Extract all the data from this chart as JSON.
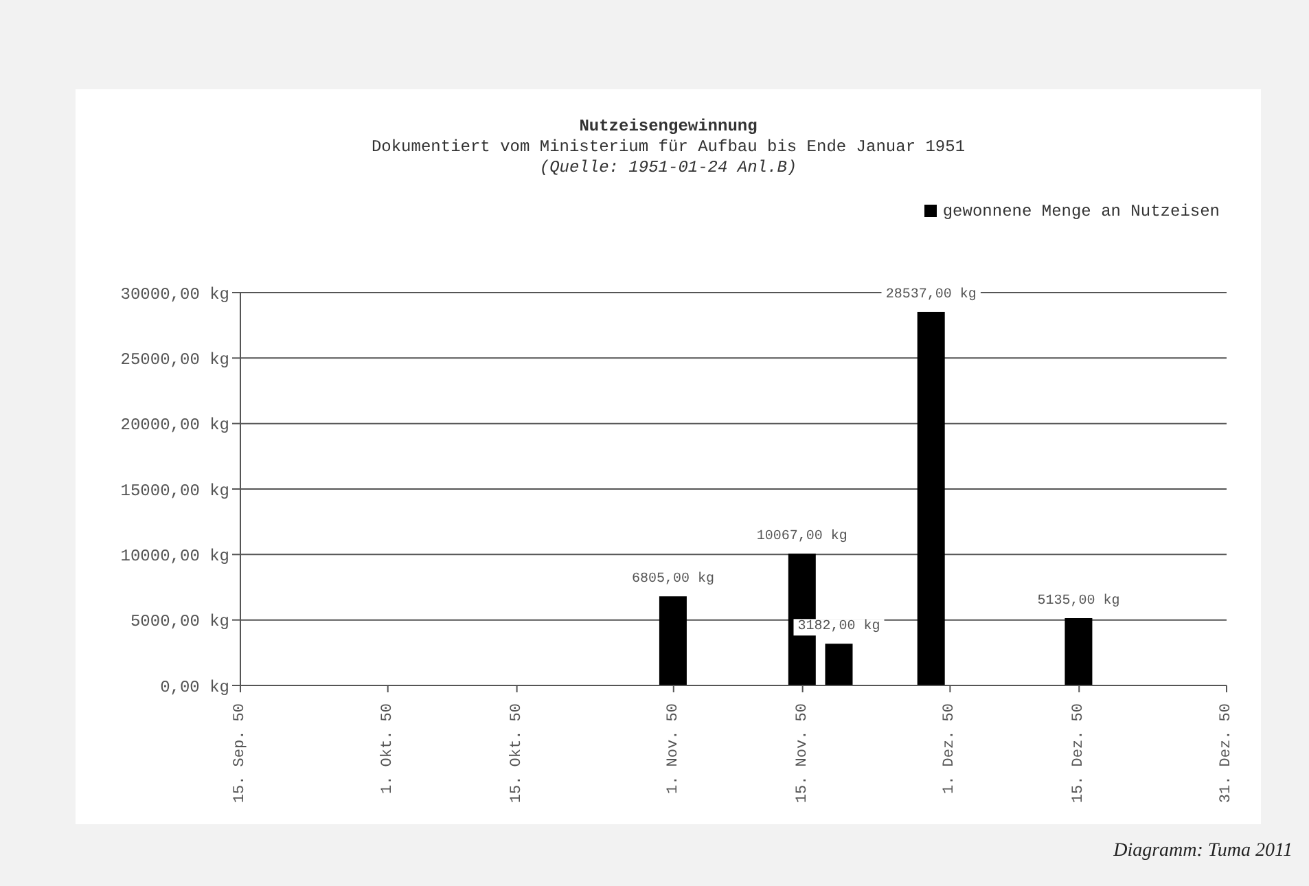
{
  "chart_data": {
    "type": "bar",
    "title": "Nutzeisengewinnung",
    "subtitle": "Dokumentiert vom Ministerium für Aufbau bis Ende Januar 1951\n(Quelle: 1951-01-24 Anl.B)",
    "x": [
      "1950-11-01",
      "1950-11-15",
      "1950-11-19",
      "1950-11-29",
      "1950-12-15"
    ],
    "series": [
      {
        "name": "gewonnene Menge an Nutzeisen",
        "color": "#000000",
        "values": [
          6805,
          10067,
          3182,
          28537,
          5135
        ],
        "value_labels": [
          "6805,00 kg",
          "10067,00 kg",
          "3182,00 kg",
          "28537,00 kg",
          "5135,00 kg"
        ]
      }
    ],
    "xlim": [
      "1950-09-15",
      "1950-12-31"
    ],
    "xticks": [
      {
        "value": "1950-09-15",
        "label": "15. Sep. 50"
      },
      {
        "value": "1950-10-01",
        "label": "1. Okt. 50"
      },
      {
        "value": "1950-10-15",
        "label": "15. Okt. 50"
      },
      {
        "value": "1950-11-01",
        "label": "1. Nov. 50"
      },
      {
        "value": "1950-11-15",
        "label": "15. Nov. 50"
      },
      {
        "value": "1950-12-01",
        "label": "1. Dez. 50"
      },
      {
        "value": "1950-12-15",
        "label": "15. Dez. 50"
      },
      {
        "value": "1950-12-31",
        "label": "31. Dez. 50"
      }
    ],
    "ylim": [
      0,
      30000
    ],
    "yticks": [
      {
        "value": 0,
        "label": "0,00 kg"
      },
      {
        "value": 5000,
        "label": "5000,00 kg"
      },
      {
        "value": 10000,
        "label": "10000,00 kg"
      },
      {
        "value": 15000,
        "label": "15000,00 kg"
      },
      {
        "value": 20000,
        "label": "20000,00 kg"
      },
      {
        "value": 25000,
        "label": "25000,00 kg"
      },
      {
        "value": 30000,
        "label": "30000,00 kg"
      }
    ],
    "grid": "y",
    "legend": "top right",
    "annotations": [
      "Diagramm: Tuma 2011"
    ]
  }
}
